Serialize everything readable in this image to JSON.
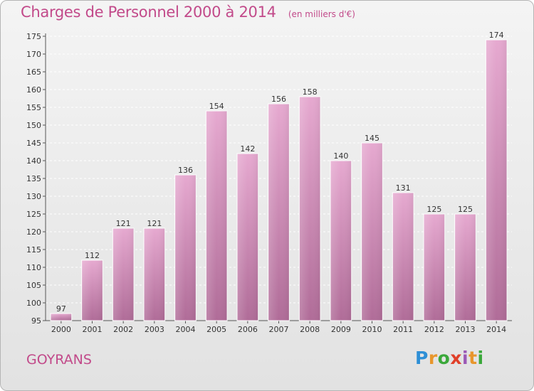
{
  "title": "Charges de Personnel 2000 à 2014",
  "subtitle": "(en milliers d'€)",
  "commune": "GOYRANS",
  "logo": "Proxiti",
  "colors": {
    "accent": "#c24a8a",
    "bar_top": "#e6a9d0",
    "bar_bottom": "#b06c98"
  },
  "chart_data": {
    "type": "bar",
    "title": "Charges de Personnel 2000 à 2014",
    "subtitle": "(en milliers d'€)",
    "categories": [
      "2000",
      "2001",
      "2002",
      "2003",
      "2004",
      "2005",
      "2006",
      "2007",
      "2008",
      "2009",
      "2010",
      "2011",
      "2012",
      "2013",
      "2014"
    ],
    "values": [
      97,
      112,
      121,
      121,
      136,
      154,
      142,
      156,
      158,
      140,
      145,
      131,
      125,
      125,
      174
    ],
    "ylim": [
      95,
      175
    ],
    "yticks": [
      95,
      100,
      105,
      110,
      115,
      120,
      125,
      130,
      135,
      140,
      145,
      150,
      155,
      160,
      165,
      170,
      175
    ],
    "grid": true,
    "legend": "none"
  }
}
